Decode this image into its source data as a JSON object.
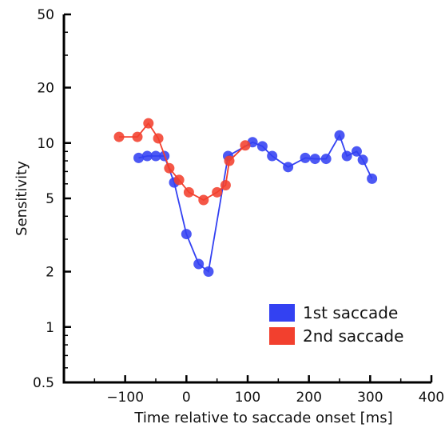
{
  "chart_data": {
    "type": "line",
    "xlabel": "Time relative to saccade onset [ms]",
    "ylabel": "Sensitivity",
    "y_scale": "log",
    "xlim": [
      -200,
      400
    ],
    "ylim": [
      0.5,
      50
    ],
    "x_ticks": [
      -100,
      0,
      100,
      200,
      300,
      400
    ],
    "x_tick_labels": [
      "−100",
      "0",
      "100",
      "200",
      "300",
      "400"
    ],
    "y_ticks": [
      0.5,
      1,
      2,
      5,
      10,
      20,
      50
    ],
    "y_tick_labels": [
      "0.5",
      "1",
      "2",
      "5",
      "10",
      "20",
      "50"
    ],
    "grid": false,
    "legend_position": "bottom-right",
    "series": [
      {
        "name": "1st saccade",
        "color": "#3341f2",
        "x": [
          -78,
          -64,
          -50,
          -36,
          -20,
          0,
          20,
          36,
          68,
          108,
          124,
          140,
          166,
          194,
          210,
          228,
          250,
          262,
          278,
          288,
          303
        ],
        "y": [
          8.3,
          8.5,
          8.5,
          8.5,
          6.1,
          3.2,
          2.2,
          2.0,
          8.5,
          10.1,
          9.6,
          8.5,
          7.4,
          8.3,
          8.2,
          8.2,
          11.0,
          8.5,
          9.0,
          8.1,
          6.4
        ]
      },
      {
        "name": "2nd saccade",
        "color": "#f2402e",
        "x": [
          -110,
          -80,
          -62,
          -46,
          -28,
          -12,
          4,
          28,
          50,
          64,
          70,
          96
        ],
        "y": [
          10.8,
          10.8,
          12.8,
          10.6,
          7.3,
          6.3,
          5.4,
          4.9,
          5.4,
          5.9,
          8.0,
          9.7
        ]
      }
    ]
  }
}
